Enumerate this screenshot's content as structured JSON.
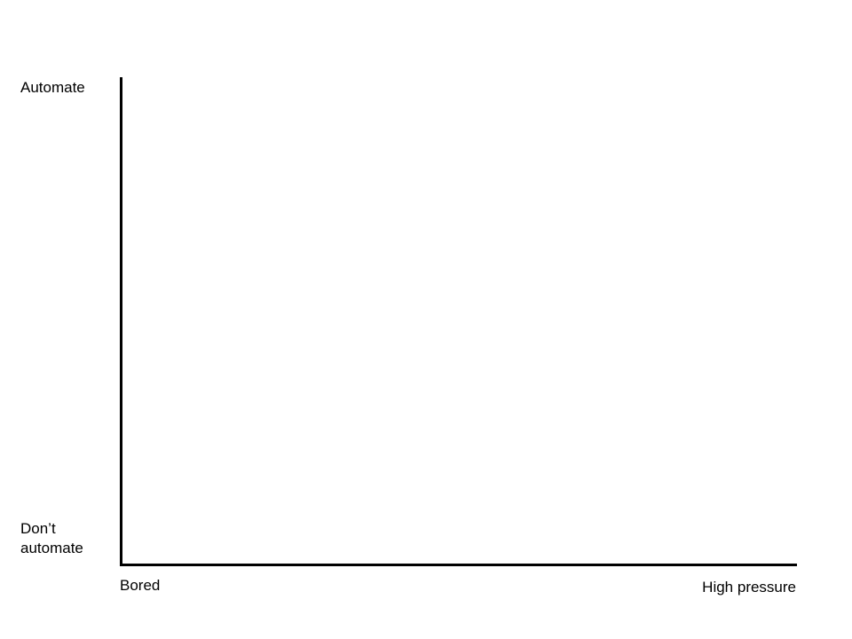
{
  "y_axis": {
    "top_label": "Automate",
    "bottom_label_line1": "Don’t",
    "bottom_label_line2": "automate"
  },
  "x_axis": {
    "left_label": "Bored",
    "right_label": "High pressure"
  }
}
